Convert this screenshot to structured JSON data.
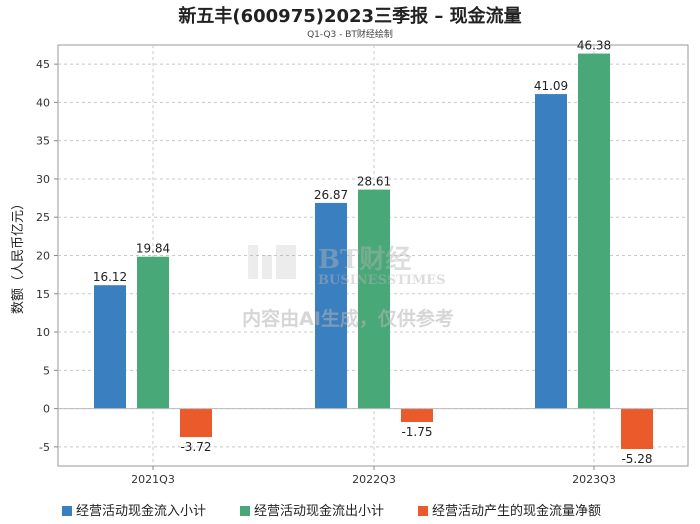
{
  "title": "新五丰(600975)2023三季报 – 现金流量",
  "subtitle": "Q1-Q3 - BT财经绘制",
  "watermark": {
    "logo_text": "BT财经",
    "logo_sub": "BUSINESSTIMES",
    "notice": "内容由AI生成，仅供参考"
  },
  "colors": {
    "inflow": "#3a7fbf",
    "outflow": "#48a878",
    "net": "#ea5a2a"
  },
  "chart_data": {
    "type": "bar",
    "title": "新五丰(600975)2023三季报 – 现金流量",
    "subtitle": "Q1-Q3 - BT财经绘制",
    "xlabel": "",
    "ylabel": "数额（人民币亿元）",
    "categories": [
      "2021Q3",
      "2022Q3",
      "2023Q3"
    ],
    "series": [
      {
        "name": "经营活动现金流入小计",
        "values": [
          16.12,
          26.87,
          41.09
        ]
      },
      {
        "name": "经营活动现金流出小计",
        "values": [
          19.84,
          28.61,
          46.38
        ]
      },
      {
        "name": "经营活动产生的现金流量净额",
        "values": [
          -3.72,
          -1.75,
          -5.28
        ]
      }
    ],
    "ylim": [
      -7.5,
      47.5
    ],
    "yticks": [
      -5,
      0,
      5,
      10,
      15,
      20,
      25,
      30,
      35,
      40,
      45
    ],
    "grid": true,
    "legend_position": "bottom"
  }
}
